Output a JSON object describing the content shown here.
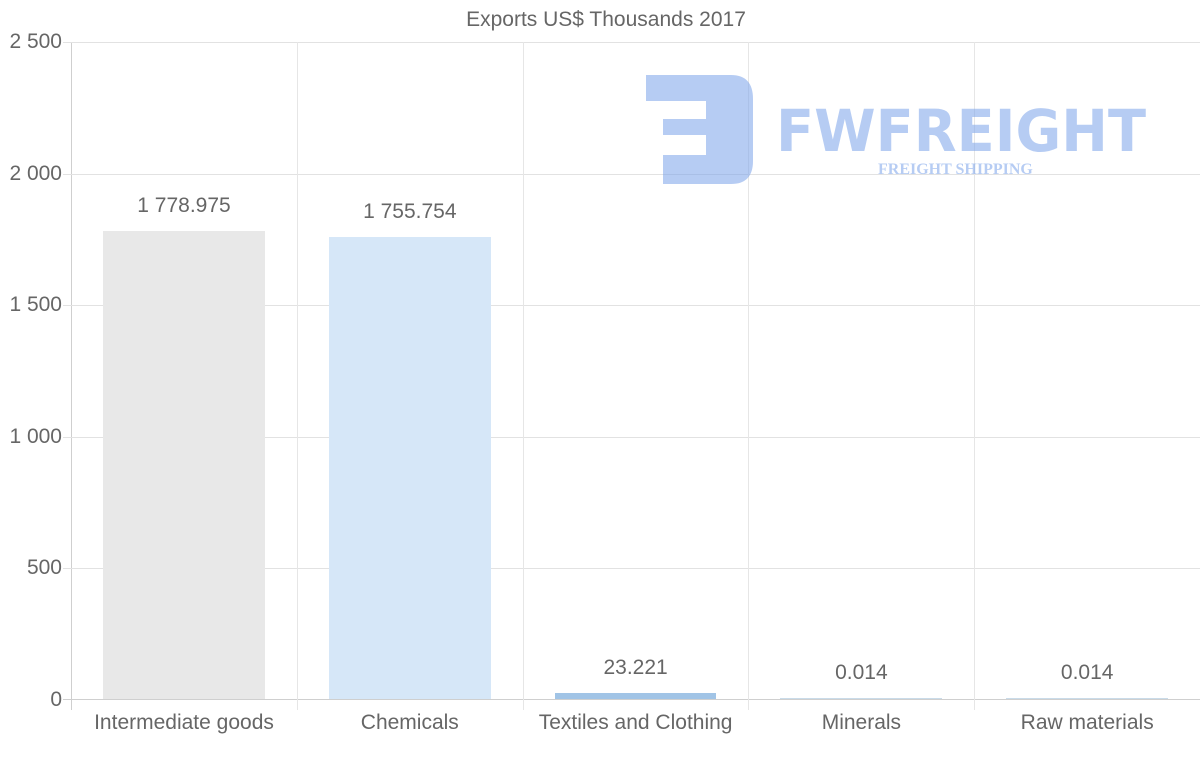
{
  "chart_data": {
    "type": "bar",
    "title": "Exports US$ Thousands 2017",
    "xlabel": "",
    "ylabel": "",
    "ylim": [
      0,
      2500
    ],
    "yticks": [
      "0",
      "500",
      "1 000",
      "1 500",
      "2 000",
      "2 500"
    ],
    "grid": true,
    "legend": null,
    "categories": [
      "Intermediate goods",
      "Chemicals",
      "Textiles and Clothing",
      "Minerals",
      "Raw materials"
    ],
    "values": [
      1778.975,
      1755.754,
      23.221,
      0.014,
      0.014
    ],
    "value_labels": [
      "1 778.975",
      "1 755.754",
      "23.221",
      "0.014",
      "0.014"
    ],
    "colors": [
      "#e8e8e8",
      "#d6e7f8",
      "#a1c4e6",
      "#c9dbe9",
      "#c9dbe9"
    ]
  },
  "watermark": {
    "brand": "FWFREIGHT",
    "tagline": "FREIGHT SHIPPING",
    "color": "#7ba3eb"
  }
}
